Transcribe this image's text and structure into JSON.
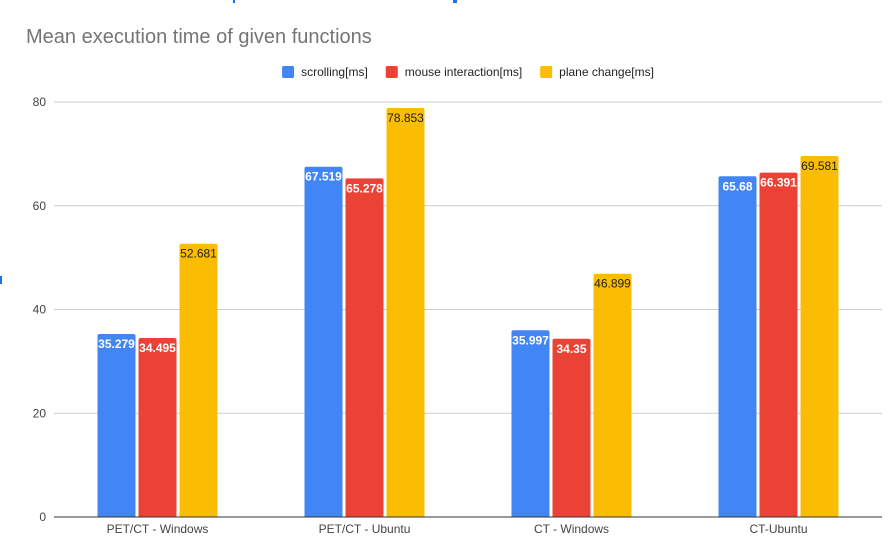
{
  "chart_data": {
    "type": "bar",
    "title": "Mean execution time of given functions",
    "xlabel": "",
    "ylabel": "",
    "categories": [
      "PET/CT - Windows",
      "PET/CT - Ubuntu",
      "CT - Windows",
      "CT-Ubuntu"
    ],
    "series": [
      {
        "name": "scrolling[ms]",
        "color": "#4285f4",
        "label_color": "#ffffff",
        "values": [
          35.279,
          67.519,
          35.997,
          65.68
        ],
        "labels": [
          "35.279",
          "67.519",
          "35.997",
          "65.68"
        ]
      },
      {
        "name": "mouse interaction[ms]",
        "color": "#ea4335",
        "label_color": "#ffffff",
        "values": [
          34.495,
          65.278,
          34.35,
          66.391
        ],
        "labels": [
          "34.495",
          "65.278",
          "34.35",
          "66.391"
        ]
      },
      {
        "name": "plane change[ms]",
        "color": "#fbbc04",
        "label_color": "#222222",
        "values": [
          52.681,
          78.853,
          46.899,
          69.581
        ],
        "labels": [
          "52.681",
          "78.853",
          "46.899",
          "69.581"
        ]
      }
    ],
    "ylim": [
      0,
      80
    ],
    "yticks": [
      0,
      20,
      40,
      60,
      80
    ],
    "grid": true,
    "legend_position": "top-center"
  }
}
